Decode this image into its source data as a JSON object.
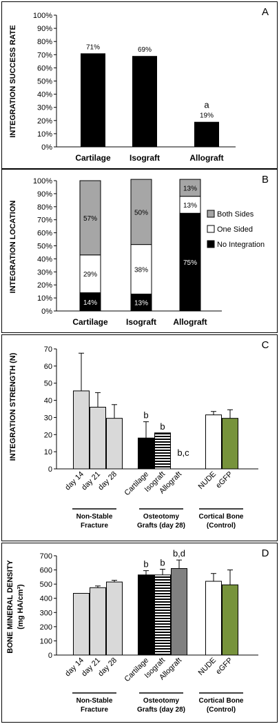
{
  "chart_data": [
    {
      "panel": "A",
      "type": "bar",
      "ylabel": "INTEGRATION SUCCESS RATE",
      "ylim": [
        0,
        100
      ],
      "yticks": [
        "0%",
        "10%",
        "20%",
        "30%",
        "40%",
        "50%",
        "60%",
        "70%",
        "80%",
        "90%",
        "100%"
      ],
      "categories": [
        "Cartilage",
        "Isograft",
        "Allograft"
      ],
      "values": [
        71,
        69,
        19
      ],
      "value_labels": [
        "71%",
        "69%",
        "19%"
      ],
      "annotations": [
        "",
        "",
        "a"
      ],
      "bar_color": "#000000",
      "grid": false
    },
    {
      "panel": "B",
      "type": "bar",
      "stacked": true,
      "ylabel": "INTEGRATION LOCATION",
      "ylim": [
        0,
        100
      ],
      "yticks": [
        "0%",
        "10%",
        "20%",
        "30%",
        "40%",
        "50%",
        "60%",
        "70%",
        "80%",
        "90%",
        "100%"
      ],
      "categories": [
        "Cartilage",
        "Isograft",
        "Allograft"
      ],
      "series": [
        {
          "name": "No Integration",
          "values": [
            14,
            13,
            75
          ],
          "labels": [
            "14%",
            "13%",
            "75%"
          ],
          "color": "#000000",
          "text_color": "#ffffff"
        },
        {
          "name": "One Sided",
          "values": [
            29,
            38,
            13
          ],
          "labels": [
            "29%",
            "38%",
            "13%"
          ],
          "color": "#ffffff",
          "text_color": "#000000"
        },
        {
          "name": "Both Sides",
          "values": [
            57,
            50,
            13
          ],
          "labels": [
            "57%",
            "50%",
            "13%"
          ],
          "color": "#a6a6a6",
          "text_color": "#000000"
        }
      ],
      "legend": [
        "Both Sides",
        "One Sided",
        "No Integration"
      ],
      "legend_position": "right",
      "grid": false
    },
    {
      "panel": "C",
      "type": "bar",
      "ylabel": "INTEGRATION STRENGTH (N)",
      "ylim": [
        0,
        70
      ],
      "yticks": [
        "0",
        "10",
        "20",
        "30",
        "40",
        "50",
        "60",
        "70"
      ],
      "categories": [
        "day 14",
        "day 21",
        "day 28",
        "Cartilage",
        "Isograft",
        "Allograft",
        "NUDE",
        "eGFP"
      ],
      "values": [
        45.5,
        36,
        29.5,
        18,
        21,
        0,
        31.5,
        29.5
      ],
      "errors": [
        22,
        8.5,
        8,
        9.5,
        0,
        0,
        2,
        5
      ],
      "annotations": [
        "",
        "",
        "",
        "b",
        "b",
        "b,c",
        "",
        ""
      ],
      "groups": [
        {
          "label": "Non-Stable\nFracture",
          "members": [
            0,
            1,
            2
          ]
        },
        {
          "label": "Osteotomy\nGrafts (day 28)",
          "members": [
            3,
            4,
            5
          ]
        },
        {
          "label": "Cortical Bone\n(Control)",
          "members": [
            6,
            7
          ]
        }
      ],
      "colors": {
        "light_gray": "#d9d9d9",
        "black": "#000000",
        "white": "#ffffff",
        "green": "#77933c",
        "mid_gray": "#808080"
      },
      "grid": false
    },
    {
      "panel": "D",
      "type": "bar",
      "ylabel": "BONE MINERAL DENSITY",
      "ylabel_unit": "(mg HA/cm³)",
      "ylim": [
        0,
        700
      ],
      "yticks": [
        "0",
        "100",
        "200",
        "300",
        "400",
        "500",
        "600",
        "700"
      ],
      "categories": [
        "day 14",
        "day 21",
        "day 28",
        "Cartilage",
        "Isograft",
        "Allograft",
        "NUDE",
        "eGFP"
      ],
      "values": [
        435,
        475,
        515,
        565,
        565,
        610,
        520,
        495
      ],
      "errors": [
        0,
        12,
        12,
        30,
        40,
        60,
        55,
        105
      ],
      "annotations": [
        "",
        "",
        "",
        "b",
        "b",
        "b,d",
        "",
        ""
      ],
      "groups": [
        {
          "label": "Non-Stable\nFracture",
          "members": [
            0,
            1,
            2
          ]
        },
        {
          "label": "Osteotomy\nGrafts (day 28)",
          "members": [
            3,
            4,
            5
          ]
        },
        {
          "label": "Cortical Bone\n(Control)",
          "members": [
            6,
            7
          ]
        }
      ],
      "grid": false
    }
  ]
}
